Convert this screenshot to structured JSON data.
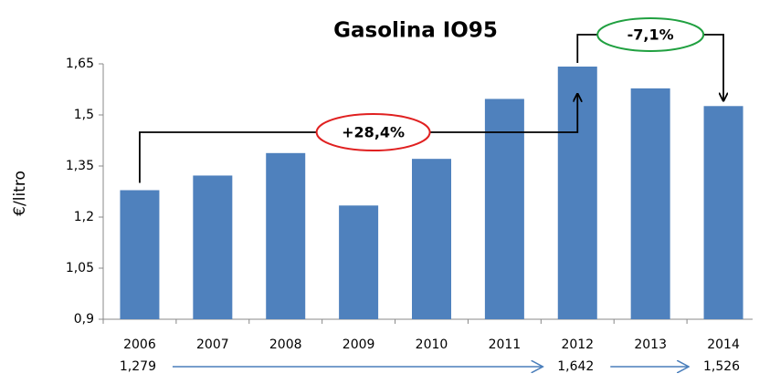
{
  "chart_data": {
    "type": "bar",
    "title": "Gasolina IO95",
    "y_label": "€/litro",
    "categories": [
      "2006",
      "2007",
      "2008",
      "2009",
      "2010",
      "2011",
      "2012",
      "2013",
      "2014"
    ],
    "values": [
      1.279,
      1.322,
      1.388,
      1.234,
      1.371,
      1.547,
      1.642,
      1.578,
      1.526
    ],
    "value_labels": [
      "1,279",
      null,
      null,
      null,
      null,
      null,
      "1,642",
      null,
      "1,526"
    ],
    "color": "#4f81bd",
    "ylim": [
      0.9,
      1.65
    ],
    "yticks": [
      {
        "value": 0.9,
        "label": "0,9"
      },
      {
        "value": 1.05,
        "label": "1,05"
      },
      {
        "value": 1.2,
        "label": "1,2"
      },
      {
        "value": 1.35,
        "label": "1,35"
      },
      {
        "value": 1.5,
        "label": "1,5"
      },
      {
        "value": 1.65,
        "label": "1,65"
      }
    ],
    "grid": false,
    "annotations": [
      "+28,4%",
      "-7,1%"
    ]
  }
}
